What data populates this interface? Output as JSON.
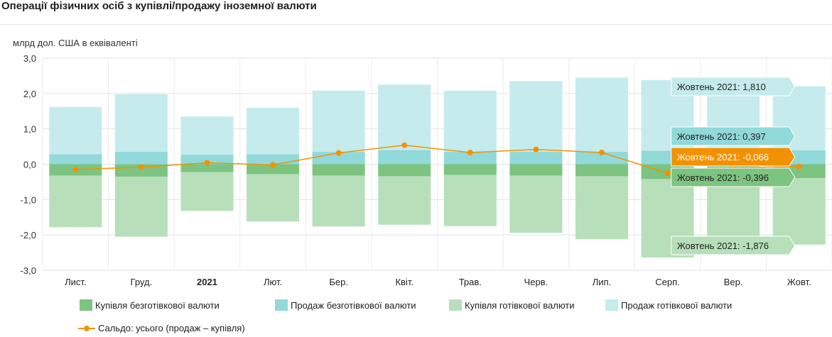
{
  "page": {
    "title": "Операції фізичних осіб з купівлі/продажу іноземної валюти",
    "unit_label": "млрд дол. США в еквіваленті"
  },
  "chart_data": {
    "type": "bar",
    "stacked": true,
    "categories": [
      "Лист.",
      "Груд.",
      "2021",
      "Лют.",
      "Бер.",
      "Квіт.",
      "Трав.",
      "Черв.",
      "Лип.",
      "Серп.",
      "Вер.",
      "Жовт."
    ],
    "bold_categories": [
      "2021"
    ],
    "ylim": [
      -3.0,
      3.0
    ],
    "yticks": [
      "3,0",
      "2,0",
      "1,0",
      "0,0",
      "-1,0",
      "-2,0",
      "-3,0"
    ],
    "grid": true,
    "series": [
      {
        "name": "Купівля безготівкової валюти",
        "type": "bar",
        "color": "#7cc47f",
        "values": [
          -0.32,
          -0.35,
          -0.22,
          -0.28,
          -0.32,
          -0.34,
          -0.3,
          -0.32,
          -0.34,
          -0.42,
          -0.38,
          -0.396
        ]
      },
      {
        "name": "Продаж безготівкової валюти",
        "type": "bar",
        "color": "#92d9d9",
        "values": [
          0.28,
          0.35,
          0.27,
          0.28,
          0.35,
          0.4,
          0.35,
          0.35,
          0.35,
          0.38,
          0.37,
          0.397
        ]
      },
      {
        "name": "Купівля готівкової валюти",
        "type": "bar",
        "color": "#b7e0ba",
        "values": [
          -1.46,
          -1.7,
          -1.1,
          -1.34,
          -1.44,
          -1.37,
          -1.45,
          -1.62,
          -1.78,
          -2.22,
          -1.95,
          -1.876
        ]
      },
      {
        "name": "Продаж готівкової валюти",
        "type": "bar",
        "color": "#c5ebec",
        "values": [
          1.34,
          1.63,
          1.08,
          1.32,
          1.73,
          1.85,
          1.73,
          2.0,
          2.1,
          2.0,
          1.85,
          1.81
        ]
      },
      {
        "name": "Сальдо: усього (продаж – купівля)",
        "type": "line",
        "color": "#f39200",
        "values": [
          -0.15,
          -0.08,
          0.04,
          -0.02,
          0.32,
          0.54,
          0.33,
          0.42,
          0.33,
          -0.25,
          -0.1,
          -0.066
        ]
      }
    ],
    "tooltips": [
      {
        "text": "Жовтень 2021: 1,810",
        "value": 1.81,
        "series": 3,
        "bg": "#c5ebec"
      },
      {
        "text": "Жовтень 2021: 0,397",
        "value": 0.397,
        "series": 1,
        "bg": "#92d9d9"
      },
      {
        "text": "Жовтень 2021: -0,066",
        "value": -0.066,
        "series": 4,
        "bg": "#f39200",
        "fg": "#ffffff"
      },
      {
        "text": "Жовтень 2021: -0,396",
        "value": -0.396,
        "series": 0,
        "bg": "#7cc47f"
      },
      {
        "text": "Жовтень 2021: -1,876",
        "value": -1.876,
        "series": 2,
        "bg": "#b7e0ba"
      }
    ],
    "legend_position": "bottom"
  }
}
